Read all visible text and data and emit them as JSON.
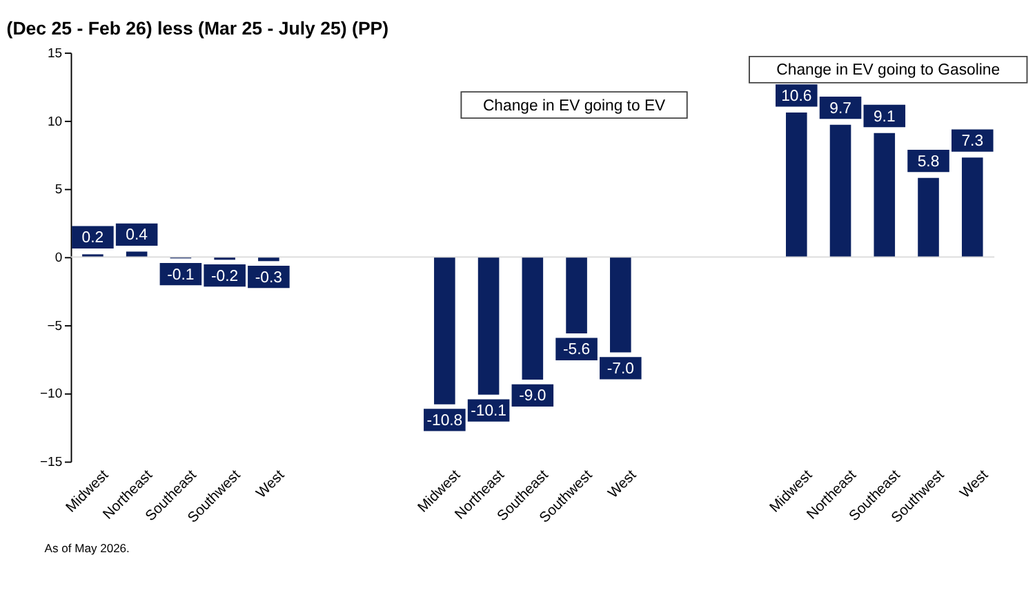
{
  "chart_data": {
    "type": "bar",
    "title": "(Dec 25 - Feb 26) less (Mar 25 - July 25) (PP)",
    "categories": [
      "Midwest",
      "Northeast",
      "Southeast",
      "Southwest",
      "West",
      null,
      null,
      null,
      "Midwest",
      "Northeast",
      "Southeast",
      "Southwest",
      "West",
      null,
      null,
      null,
      "Midwest",
      "Northeast",
      "Southeast",
      "Southwest",
      "West"
    ],
    "values": [
      0.2,
      0.4,
      -0.1,
      -0.2,
      -0.3,
      null,
      null,
      null,
      -10.8,
      -10.1,
      -9.0,
      -5.6,
      -7.0,
      null,
      null,
      null,
      10.6,
      9.7,
      9.1,
      5.8,
      7.3
    ],
    "value_labels": [
      "0.2",
      "0.4",
      "-0.1",
      "-0.2",
      "-0.3",
      null,
      null,
      null,
      "-10.8",
      "-10.1",
      "-9.0",
      "-5.6",
      "-7.0",
      null,
      null,
      null,
      "10.6",
      "9.7",
      "9.1",
      "5.8",
      "7.3"
    ],
    "color": "#0b2161",
    "ylim": [
      -15,
      15
    ],
    "yticks": [
      -15,
      -10,
      -5,
      0,
      5,
      10,
      15
    ],
    "ref_lines": [
      {
        "axis": "y",
        "value": 0,
        "color": "#d9d9d9"
      }
    ],
    "grid": false,
    "annotations": [
      "Change in EV going to EV",
      "Change in EV going to Gasoline",
      "As of May 2026."
    ]
  }
}
